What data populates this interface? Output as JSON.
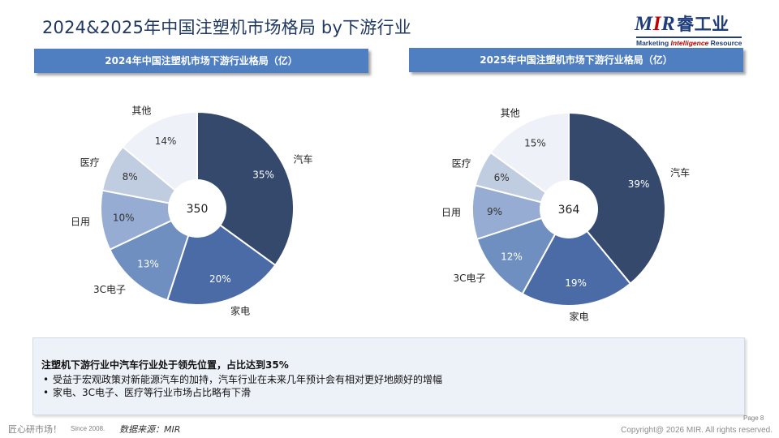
{
  "page_title": "2024&2025年中国注塑机市场格局 by下游行业",
  "logo": {
    "main_a": "M",
    "main_r": "I",
    "main_b": "R",
    "cn": "睿工业",
    "sub_a": "Marketing ",
    "sub_it": "Intelligence",
    "sub_b": " Resource"
  },
  "chart_data": [
    {
      "type": "pie",
      "title": "2024年中国注塑机市场下游行业格局（亿）",
      "total": "350",
      "categories": [
        "汽车",
        "家电",
        "3C电子",
        "日用",
        "医疗",
        "其他"
      ],
      "values": [
        35,
        20,
        13,
        10,
        8,
        14
      ],
      "value_labels": [
        "35%",
        "20%",
        "13%",
        "10%",
        "8%",
        "14%"
      ],
      "colors": [
        "#34496c",
        "#4a6ba5",
        "#6e8fc0",
        "#97acd3",
        "#c0ccdf",
        "#eef1f7"
      ]
    },
    {
      "type": "pie",
      "title": "2025年中国注塑机市场下游行业格局（亿）",
      "total": "364",
      "categories": [
        "汽车",
        "家电",
        "3C电子",
        "日用",
        "医疗",
        "其他"
      ],
      "values": [
        39,
        19,
        12,
        9,
        6,
        15
      ],
      "value_labels": [
        "39%",
        "19%",
        "12%",
        "9%",
        "6%",
        "15%"
      ],
      "colors": [
        "#34496c",
        "#4a6ba5",
        "#6e8fc0",
        "#97acd3",
        "#c0ccdf",
        "#eef1f7"
      ]
    }
  ],
  "summary": {
    "headline": "注塑机下游行业中汽车行业处于领先位置，占比达到35%",
    "bullets": [
      "受益于宏观政策对新能源汽车的加持，汽车行业在未来几年预计会有相对更好地颇好的增幅",
      "家电、3C电子、医疗等行业市场占比略有下滑"
    ]
  },
  "footer": {
    "slogan": "匠心研市场！",
    "since": "Since 2008.",
    "source": "数据来源：MIR",
    "page": "Page 8",
    "copyright": "Copyright@ 2026 MIR. All rights reserved."
  }
}
